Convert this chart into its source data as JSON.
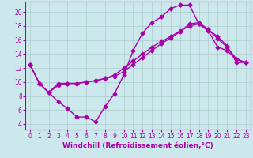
{
  "background_color": "#cce8ec",
  "grid_color": "#aacccc",
  "line_color": "#aa00aa",
  "marker": "D",
  "markersize": 2.5,
  "linewidth": 1.0,
  "xlabel": "Windchill (Refroidissement éolien,°C)",
  "xlabel_fontsize": 6.5,
  "tick_fontsize": 5.5,
  "xlim": [
    -0.5,
    23.5
  ],
  "ylim": [
    3.2,
    21.5
  ],
  "xticks": [
    0,
    1,
    2,
    3,
    4,
    5,
    6,
    7,
    8,
    9,
    10,
    11,
    12,
    13,
    14,
    15,
    16,
    17,
    18,
    19,
    20,
    21,
    22,
    23
  ],
  "yticks": [
    4,
    6,
    8,
    10,
    12,
    14,
    16,
    18,
    20
  ],
  "line1_x": [
    0,
    1,
    2,
    3,
    4,
    5,
    6,
    7,
    8,
    9,
    10,
    11,
    12,
    13,
    14,
    15,
    16,
    17,
    18,
    19,
    20,
    21,
    22,
    23
  ],
  "line1_y": [
    12.5,
    9.8,
    8.5,
    7.2,
    6.2,
    5.0,
    5.0,
    4.3,
    6.5,
    8.3,
    11.0,
    14.5,
    17.0,
    18.5,
    19.3,
    20.5,
    21.0,
    21.0,
    18.3,
    17.3,
    15.0,
    14.5,
    13.2,
    12.8
  ],
  "line2_x": [
    0,
    1,
    2,
    3,
    4,
    5,
    6,
    7,
    8,
    9,
    10,
    11,
    12,
    13,
    14,
    15,
    16,
    17,
    18,
    19,
    20,
    21,
    22,
    23
  ],
  "line2_y": [
    12.5,
    9.8,
    8.5,
    9.5,
    9.8,
    9.8,
    10.0,
    10.2,
    10.5,
    10.8,
    11.5,
    12.5,
    13.5,
    14.5,
    15.5,
    16.3,
    17.2,
    18.3,
    18.5,
    17.5,
    16.5,
    15.2,
    12.8,
    12.8
  ],
  "line3_x": [
    0,
    1,
    2,
    3,
    4,
    5,
    6,
    7,
    8,
    9,
    10,
    11,
    12,
    13,
    14,
    15,
    16,
    17,
    18,
    19,
    20,
    21,
    22,
    23
  ],
  "line3_y": [
    12.5,
    9.8,
    8.5,
    9.8,
    9.8,
    9.8,
    10.0,
    10.2,
    10.5,
    11.0,
    12.0,
    13.0,
    14.0,
    15.0,
    15.8,
    16.5,
    17.3,
    18.0,
    18.3,
    17.5,
    16.2,
    15.0,
    13.3,
    12.8
  ]
}
